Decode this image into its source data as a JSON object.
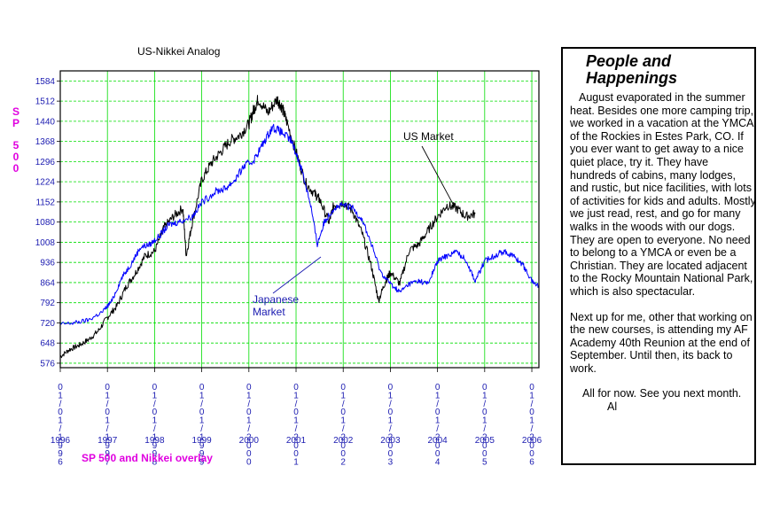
{
  "chart_data": {
    "type": "line",
    "title": "US-Nikkei Analog",
    "subtitle": "SP 500 and Nikkei overlay",
    "ylabel": "SP 500",
    "ylim": [
      560,
      1620
    ],
    "y_ticks": [
      576,
      648,
      720,
      792,
      864,
      936,
      1008,
      1080,
      1152,
      1224,
      1296,
      1368,
      1440,
      1512,
      1584
    ],
    "x_ticks": [
      "01/01/1996",
      "01/01/1997",
      "01/01/1998",
      "01/01/1999",
      "01/01/2000",
      "01/01/2001",
      "01/01/2002",
      "01/01/2003",
      "01/01/2004",
      "01/01/2005",
      "01/01/2006"
    ],
    "x_year_labels": [
      "1996",
      "1997",
      "1998",
      "1999",
      "2000",
      "2001",
      "2002",
      "2003",
      "2004",
      "2005",
      "2006"
    ],
    "xlim": [
      1996.0,
      2006.15
    ],
    "grid": true,
    "series": [
      {
        "name": "US Market",
        "color": "#000000",
        "x": [
          1996.0,
          1996.2,
          1996.4,
          1996.6,
          1996.8,
          1997.0,
          1997.2,
          1997.4,
          1997.6,
          1997.8,
          1998.0,
          1998.2,
          1998.4,
          1998.6,
          1998.67,
          1998.8,
          1999.0,
          1999.2,
          1999.4,
          1999.6,
          1999.8,
          2000.0,
          2000.1,
          2000.2,
          2000.4,
          2000.6,
          2000.7,
          2000.8,
          2001.0,
          2001.2,
          2001.4,
          2001.5,
          2001.7,
          2001.8,
          2002.0,
          2002.2,
          2002.4,
          2002.6,
          2002.75,
          2002.9,
          2003.0,
          2003.2,
          2003.4,
          2003.6,
          2003.8,
          2004.0,
          2004.2,
          2004.4,
          2004.6,
          2004.8
        ],
        "values": [
          600,
          625,
          640,
          660,
          690,
          740,
          780,
          850,
          900,
          960,
          975,
          1060,
          1100,
          1130,
          960,
          1080,
          1230,
          1290,
          1330,
          1370,
          1390,
          1430,
          1480,
          1520,
          1470,
          1520,
          1490,
          1440,
          1330,
          1220,
          1180,
          1160,
          1080,
          1140,
          1150,
          1120,
          1040,
          920,
          800,
          870,
          900,
          860,
          980,
          1000,
          1050,
          1100,
          1140,
          1130,
          1100,
          1110
        ]
      },
      {
        "name": "Japanese Market",
        "color": "#0000ff",
        "x": [
          1996.0,
          1996.3,
          1996.6,
          1996.9,
          1997.1,
          1997.3,
          1997.5,
          1997.7,
          1997.9,
          1998.1,
          1998.3,
          1998.5,
          1998.8,
          1999.0,
          1999.3,
          1999.5,
          1999.7,
          1999.9,
          2000.1,
          2000.3,
          2000.5,
          2000.7,
          2000.9,
          2001.1,
          2001.3,
          2001.45,
          2001.6,
          2001.8,
          2002.0,
          2002.2,
          2002.4,
          2002.6,
          2002.8,
          2003.0,
          2003.2,
          2003.4,
          2003.6,
          2003.8,
          2004.0,
          2004.2,
          2004.4,
          2004.6,
          2004.8,
          2005.0,
          2005.2,
          2005.4,
          2005.6,
          2005.8,
          2006.0,
          2006.15
        ],
        "values": [
          715,
          720,
          730,
          760,
          800,
          880,
          930,
          990,
          1000,
          1030,
          1070,
          1080,
          1100,
          1150,
          1190,
          1200,
          1230,
          1280,
          1300,
          1360,
          1420,
          1400,
          1370,
          1280,
          1150,
          1000,
          1080,
          1130,
          1140,
          1130,
          1090,
          1000,
          900,
          860,
          830,
          860,
          870,
          860,
          940,
          960,
          975,
          945,
          870,
          940,
          960,
          975,
          960,
          930,
          870,
          850
        ]
      }
    ],
    "annotations": [
      {
        "text": "US Market",
        "points_to": "US Market"
      },
      {
        "text": "Japanese Market",
        "lines": [
          "Japanese",
          "Market"
        ],
        "points_to": "Japanese Market"
      }
    ]
  },
  "panel": {
    "title": "People and Happenings",
    "paragraphs": [
      "August evaporated in the summer heat. Besides one more camping trip, we worked in a vacation at the YMCA of the Rockies in Estes Park, CO. If you ever want to get away to a nice quiet place, try it. They have hundreds of cabins, many lodges, and rustic, but nice facilities, with lots of activities for kids and adults. Mostly we just read, rest, and go for many walks in the woods with our dogs. They are open to everyone. No need to belong to a YMCA or even be a Christian. They are located adjacent to the Rocky Mountain National Park, which is also spectacular.",
      "Next up for me, other that working on the new courses, is attending my AF Academy 40th Reunion at the end of September. Until then, its back to work.",
      "All for now. See you next month."
    ],
    "signature": "Al"
  },
  "colors": {
    "grid": "#00dd00",
    "axis_text": "#1a1ab0",
    "accent_magenta": "#e000e0",
    "us_line": "#000000",
    "japan_line": "#0000ff"
  }
}
